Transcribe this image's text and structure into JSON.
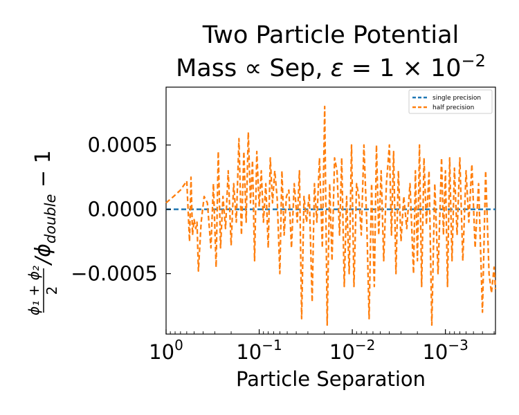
{
  "chart_data": {
    "type": "line",
    "title_line1": "Two Particle Potential",
    "title_line2_prefix": "Mass ∝ Sep, ",
    "title_eps_symbol": "ε",
    "title_eq": " = 1 × 10",
    "title_exp": "−2",
    "xlabel": "Particle Separation",
    "ylabel_frac_num": "ϕ₁ + ϕ₂",
    "ylabel_frac_den": "2",
    "ylabel_rest": "/ϕ",
    "ylabel_sub": "double",
    "ylabel_tail": " − 1",
    "x_scale": "log",
    "x_inverted": true,
    "xlim": [
      1.0,
      0.00029
    ],
    "ylim": [
      -0.00097,
      0.00095
    ],
    "x_ticks": [
      {
        "value": 1,
        "base": "10",
        "exp": "0"
      },
      {
        "value": 0.1,
        "base": "10",
        "exp": "−1"
      },
      {
        "value": 0.01,
        "base": "10",
        "exp": "−2"
      },
      {
        "value": 0.001,
        "base": "10",
        "exp": "−3"
      }
    ],
    "y_ticks": [
      {
        "value": 0.0005,
        "label": "0.0005"
      },
      {
        "value": 0.0,
        "label": "0.0000"
      },
      {
        "value": -0.0005,
        "label": "−0.0005"
      }
    ],
    "legend_position": "top-right",
    "grid": false,
    "series": [
      {
        "name": "single precision",
        "color": "#1f77b4",
        "style": "dashed",
        "x": [
          1.0,
          0.00029
        ],
        "y": [
          0.0,
          0.0
        ]
      },
      {
        "name": "half precision",
        "color": "#ff7f0e",
        "style": "dashed",
        "x": [
          1.0,
          0.83,
          0.7,
          0.6,
          0.56,
          0.54,
          0.52,
          0.5,
          0.48,
          0.465,
          0.45,
          0.42,
          0.39,
          0.36,
          0.33,
          0.31,
          0.29,
          0.275,
          0.26,
          0.245,
          0.23,
          0.215,
          0.2,
          0.188,
          0.176,
          0.165,
          0.155,
          0.146,
          0.138,
          0.131,
          0.124,
          0.118,
          0.112,
          0.106,
          0.1,
          0.095,
          0.09,
          0.085,
          0.08,
          0.076,
          0.072,
          0.068,
          0.064,
          0.06,
          0.057,
          0.054,
          0.051,
          0.048,
          0.045,
          0.042,
          0.039,
          0.037,
          0.035,
          0.033,
          0.031,
          0.029,
          0.027,
          0.0255,
          0.024,
          0.0225,
          0.021,
          0.0198,
          0.0186,
          0.0175,
          0.0165,
          0.0155,
          0.0146,
          0.0137,
          0.013,
          0.0122,
          0.0115,
          0.0108,
          0.0102,
          0.0096,
          0.009,
          0.0085,
          0.008,
          0.0075,
          0.007,
          0.0066,
          0.0062,
          0.0058,
          0.0055,
          0.0052,
          0.0049,
          0.0046,
          0.0043,
          0.004,
          0.0038,
          0.0036,
          0.0034,
          0.0032,
          0.003,
          0.0028,
          0.0026,
          0.0024,
          0.0022,
          0.0021,
          0.002,
          0.0019,
          0.0018,
          0.0017,
          0.0016,
          0.0015,
          0.0014,
          0.0013,
          0.0012,
          0.0011,
          0.00105,
          0.001,
          0.00095,
          0.0009,
          0.00085,
          0.0008,
          0.00075,
          0.0007,
          0.00065,
          0.0006,
          0.00056,
          0.00052,
          0.00048,
          0.00044,
          0.0004,
          0.00037,
          0.00034,
          0.00032,
          0.0003,
          0.00029
        ],
        "y": [
          5e-05,
          0.0001,
          0.00015,
          0.00022,
          -0.00025,
          0.00025,
          -0.0002,
          -8e-05,
          -0.00015,
          -0.0001,
          -0.00048,
          -0.0001,
          0.0001,
          5e-05,
          -0.0003,
          0.0002,
          -0.00045,
          0.00045,
          -0.0003,
          0.0001,
          -0.00015,
          0.0003,
          -0.00028,
          0.0002,
          -0.0001,
          0.00055,
          -0.0002,
          0.00045,
          -0.0001,
          0.0006,
          5e-05,
          0.00038,
          -0.0004,
          0.00045,
          2e-05,
          0.0003,
          -0.0001,
          0.0002,
          -0.0003,
          0.0004,
          5e-05,
          0.0003,
          8e-05,
          -0.0005,
          0.0003,
          -0.0002,
          0.0001,
          0.00015,
          -0.0003,
          0.0002,
          -0.0001,
          0.0003,
          -0.00085,
          0.0001,
          -0.0001,
          0.00012,
          -0.00072,
          0.0002,
          -0.0001,
          0.0004,
          -0.0003,
          0.0008,
          -0.0009,
          0.0002,
          -0.0004,
          0.0004,
          0.0003,
          -0.0002,
          0.0004,
          -0.0006,
          0.0001,
          -0.0005,
          0.0005,
          -0.0006,
          0.0002,
          0.0001,
          -0.0002,
          0.0005,
          -0.0001,
          -0.00085,
          0.0002,
          -0.0006,
          0.0005,
          -0.0002,
          0.0003,
          -0.0004,
          0.0002,
          0.0005,
          -0.0002,
          0.00045,
          -0.0005,
          0.0003,
          -0.00025,
          0.0001,
          -0.00015,
          0.0002,
          -0.0005,
          0.0003,
          -0.0004,
          0.0005,
          -0.0006,
          0.0004,
          -0.00012,
          0.0003,
          -0.0009,
          0.0002,
          -0.0005,
          0.0004,
          -0.0002,
          0.0003,
          -0.0006,
          0.0004,
          -0.0004,
          0.00032,
          -0.0002,
          0.0004,
          -0.0004,
          0.0003,
          -0.0001,
          0.00035,
          -0.0003,
          0.0002,
          -0.0008,
          0.0003,
          -0.0005,
          -0.00065,
          -0.00045,
          -0.00062
        ]
      }
    ]
  }
}
